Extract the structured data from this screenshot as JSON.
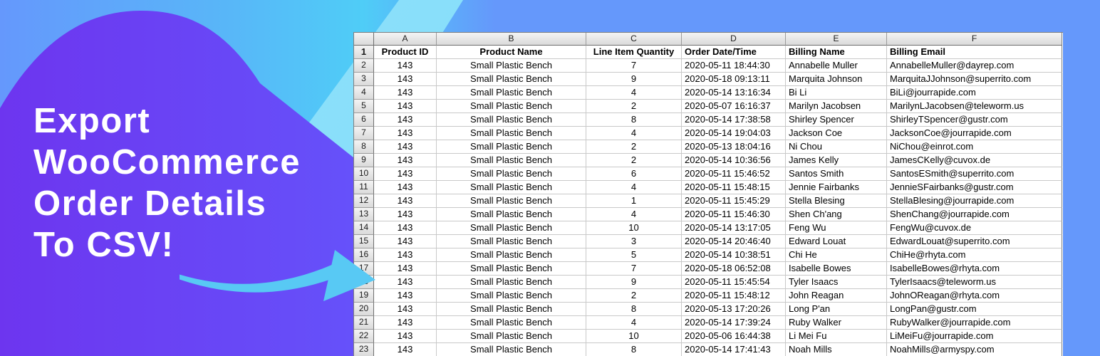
{
  "banner": {
    "title_lines": [
      "Export",
      "WooCommerce",
      "Order Details",
      "To CSV!"
    ]
  },
  "spreadsheet": {
    "corner_label": "",
    "column_letters": [
      "A",
      "B",
      "C",
      "D",
      "E",
      "F"
    ],
    "header_row": {
      "num": "1",
      "cells": [
        "Product ID",
        "Product Name",
        "Line Item Quantity",
        "Order Date/Time",
        "Billing Name",
        "Billing Email"
      ]
    },
    "rows": [
      {
        "num": "2",
        "cells": [
          "143",
          "Small Plastic Bench",
          "7",
          "2020-05-11 18:44:30",
          "Annabelle Muller",
          "AnnabelleMuller@dayrep.com"
        ]
      },
      {
        "num": "3",
        "cells": [
          "143",
          "Small Plastic Bench",
          "9",
          "2020-05-18 09:13:11",
          "Marquita Johnson",
          "MarquitaJJohnson@superrito.com"
        ]
      },
      {
        "num": "4",
        "cells": [
          "143",
          "Small Plastic Bench",
          "4",
          "2020-05-14 13:16:34",
          "Bi Li",
          "BiLi@jourrapide.com"
        ]
      },
      {
        "num": "5",
        "cells": [
          "143",
          "Small Plastic Bench",
          "2",
          "2020-05-07 16:16:37",
          "Marilyn Jacobsen",
          "MarilynLJacobsen@teleworm.us"
        ]
      },
      {
        "num": "6",
        "cells": [
          "143",
          "Small Plastic Bench",
          "8",
          "2020-05-14 17:38:58",
          "Shirley Spencer",
          "ShirleyTSpencer@gustr.com"
        ]
      },
      {
        "num": "7",
        "cells": [
          "143",
          "Small Plastic Bench",
          "4",
          "2020-05-14 19:04:03",
          "Jackson Coe",
          "JacksonCoe@jourrapide.com"
        ]
      },
      {
        "num": "8",
        "cells": [
          "143",
          "Small Plastic Bench",
          "2",
          "2020-05-13 18:04:16",
          "Ni Chou",
          "NiChou@einrot.com"
        ]
      },
      {
        "num": "9",
        "cells": [
          "143",
          "Small Plastic Bench",
          "2",
          "2020-05-14 10:36:56",
          "James Kelly",
          "JamesCKelly@cuvox.de"
        ]
      },
      {
        "num": "10",
        "cells": [
          "143",
          "Small Plastic Bench",
          "6",
          "2020-05-11 15:46:52",
          "Santos Smith",
          "SantosESmith@superrito.com"
        ]
      },
      {
        "num": "11",
        "cells": [
          "143",
          "Small Plastic Bench",
          "4",
          "2020-05-11 15:48:15",
          "Jennie Fairbanks",
          "JennieSFairbanks@gustr.com"
        ]
      },
      {
        "num": "12",
        "cells": [
          "143",
          "Small Plastic Bench",
          "1",
          "2020-05-11 15:45:29",
          "Stella Blesing",
          "StellaBlesing@jourrapide.com"
        ]
      },
      {
        "num": "13",
        "cells": [
          "143",
          "Small Plastic Bench",
          "4",
          "2020-05-11 15:46:30",
          "Shen Ch'ang",
          "ShenChang@jourrapide.com"
        ]
      },
      {
        "num": "14",
        "cells": [
          "143",
          "Small Plastic Bench",
          "10",
          "2020-05-14 13:17:05",
          "Feng Wu",
          "FengWu@cuvox.de"
        ]
      },
      {
        "num": "15",
        "cells": [
          "143",
          "Small Plastic Bench",
          "3",
          "2020-05-14 20:46:40",
          "Edward Louat",
          "EdwardLouat@superrito.com"
        ]
      },
      {
        "num": "16",
        "cells": [
          "143",
          "Small Plastic Bench",
          "5",
          "2020-05-14 10:38:51",
          "Chi He",
          "ChiHe@rhyta.com"
        ]
      },
      {
        "num": "17",
        "cells": [
          "143",
          "Small Plastic Bench",
          "7",
          "2020-05-18 06:52:08",
          "Isabelle Bowes",
          "IsabelleBowes@rhyta.com"
        ]
      },
      {
        "num": "18",
        "cells": [
          "143",
          "Small Plastic Bench",
          "9",
          "2020-05-11 15:45:54",
          "Tyler Isaacs",
          "TylerIsaacs@teleworm.us"
        ]
      },
      {
        "num": "19",
        "cells": [
          "143",
          "Small Plastic Bench",
          "2",
          "2020-05-11 15:48:12",
          "John Reagan",
          "JohnOReagan@rhyta.com"
        ]
      },
      {
        "num": "20",
        "cells": [
          "143",
          "Small Plastic Bench",
          "8",
          "2020-05-13 17:20:26",
          "Long P'an",
          "LongPan@gustr.com"
        ]
      },
      {
        "num": "21",
        "cells": [
          "143",
          "Small Plastic Bench",
          "4",
          "2020-05-14 17:39:24",
          "Ruby Walker",
          "RubyWalker@jourrapide.com"
        ]
      },
      {
        "num": "22",
        "cells": [
          "143",
          "Small Plastic Bench",
          "10",
          "2020-05-06 16:44:38",
          "Li Mei Fu",
          "LiMeiFu@jourrapide.com"
        ]
      },
      {
        "num": "23",
        "cells": [
          "143",
          "Small Plastic Bench",
          "8",
          "2020-05-14 17:41:43",
          "Noah Mills",
          "NoahMills@armyspy.com"
        ]
      }
    ]
  },
  "icons": {
    "arrow": "swoosh-arrow"
  },
  "colors": {
    "background_blue": "#6598FB",
    "accent_cyan": "#4FCDF7",
    "light_cyan_wedge": "#8ADFFA",
    "purple_left": "#6D35EF",
    "purple_right": "#6554FB",
    "arrow_blue": "#58C9F4",
    "title_text": "#FFFFFF",
    "sheet_header_bg": "#E6E6E6",
    "sheet_gridline": "#C9C9C9"
  }
}
